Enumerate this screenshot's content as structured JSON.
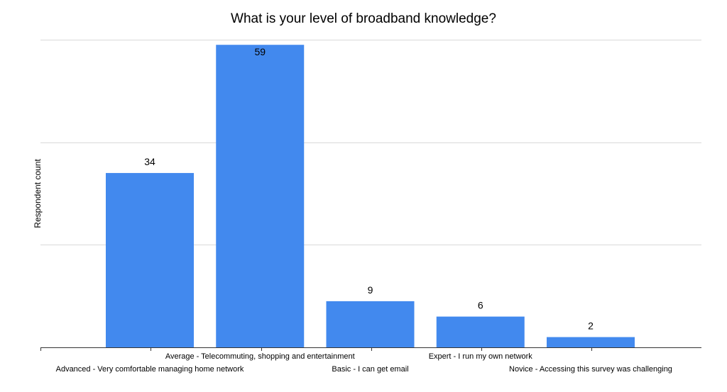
{
  "chart_data": {
    "type": "bar",
    "title": "What is your level of broadband knowledge?",
    "xlabel": "",
    "ylabel": "Respondent count",
    "categories": [
      "Advanced - Very comfortable managing home network",
      "Average - Telecommuting, shopping and entertainment",
      "Basic - I can get email",
      "Expert - I run my own network",
      "Novice - Accessing this survey was challenging"
    ],
    "values": [
      34,
      59,
      9,
      6,
      2
    ],
    "ylim": [
      0,
      60
    ],
    "grid": true,
    "legend": "none",
    "bar_color": "#4289EE"
  }
}
